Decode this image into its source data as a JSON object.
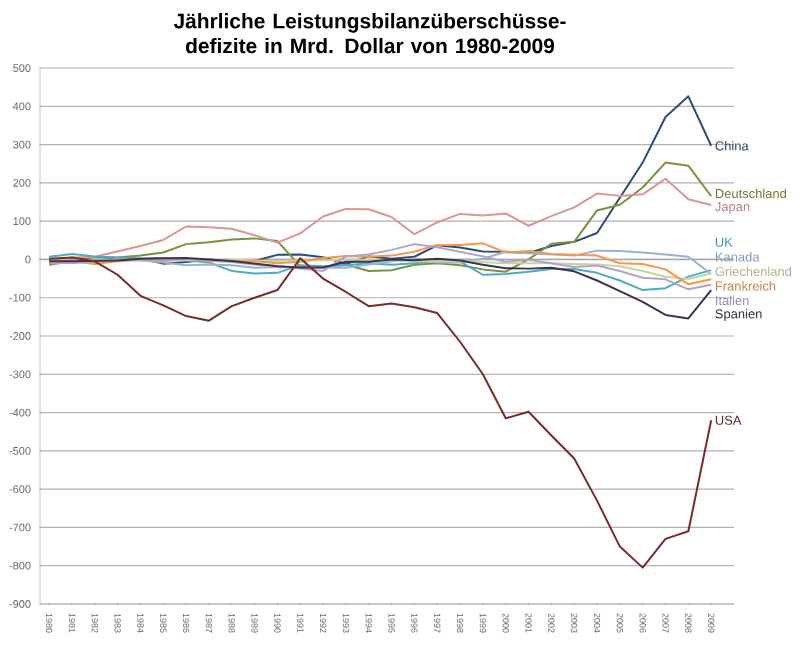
{
  "chart_data": {
    "type": "line",
    "title": "Jährliche Leistungsbilanzüberschüsse- defizite in Mrd. Dollar von 1980-2009",
    "categories": [
      "1980",
      "1981",
      "1982",
      "1983",
      "1984",
      "1985",
      "1986",
      "1987",
      "1988",
      "1989",
      "1990",
      "1991",
      "1992",
      "1993",
      "1994",
      "1995",
      "1996",
      "1997",
      "1998",
      "1999",
      "2000",
      "2001",
      "2002",
      "2003",
      "2004",
      "2005",
      "2006",
      "2007",
      "2008",
      "2009"
    ],
    "ylim": [
      -900,
      500
    ],
    "yticks": [
      -900,
      -800,
      -700,
      -600,
      -500,
      -400,
      -300,
      -200,
      -100,
      0,
      100,
      200,
      300,
      400,
      500
    ],
    "grid": "y",
    "legend": false,
    "marker": "none",
    "line_style": "solid",
    "series": [
      {
        "name": "China",
        "color": "#2c4d75",
        "values": [
          0,
          2,
          5,
          4,
          2,
          -11,
          -7,
          0,
          -4,
          -4,
          12,
          13,
          6,
          -12,
          8,
          2,
          7,
          37,
          31,
          21,
          20,
          17,
          35,
          46,
          69,
          161,
          253,
          372,
          426,
          297
        ]
      },
      {
        "name": "Deutschland",
        "color": "#77933c",
        "values": [
          -14,
          -4,
          5,
          5,
          10,
          18,
          40,
          45,
          52,
          55,
          48,
          -18,
          -20,
          -14,
          -30,
          -28,
          -14,
          -10,
          -15,
          -26,
          -32,
          0,
          41,
          46,
          128,
          143,
          188,
          253,
          245,
          165
        ]
      },
      {
        "name": "Japan",
        "color": "#d99694",
        "values": [
          -10,
          5,
          7,
          21,
          35,
          51,
          86,
          84,
          80,
          63,
          44,
          68,
          112,
          132,
          131,
          111,
          66,
          97,
          119,
          115,
          120,
          88,
          113,
          136,
          172,
          166,
          170,
          211,
          157,
          142
        ]
      },
      {
        "name": "UK",
        "color": "#4bacc6",
        "values": [
          7,
          14,
          8,
          5,
          2,
          3,
          -2,
          -8,
          -30,
          -37,
          -35,
          -15,
          -18,
          -15,
          -10,
          -14,
          -10,
          -3,
          -6,
          -40,
          -38,
          -32,
          -25,
          -25,
          -35,
          -55,
          -80,
          -75,
          -45,
          -28
        ]
      },
      {
        "name": "Kanada",
        "color": "#95b3d7",
        "values": [
          -5,
          -10,
          2,
          -2,
          -2,
          -8,
          -15,
          -13,
          -15,
          -22,
          -20,
          -22,
          -21,
          -22,
          -13,
          -5,
          3,
          -8,
          -8,
          2,
          20,
          16,
          13,
          10,
          23,
          22,
          18,
          13,
          7,
          -38
        ]
      },
      {
        "name": "Griechenland",
        "color": "#c3d69b",
        "values": [
          -2,
          -2,
          -2,
          -2,
          -2,
          -3,
          -2,
          -1,
          -1,
          -3,
          -4,
          -2,
          -2,
          -1,
          0,
          -3,
          -5,
          -5,
          -4,
          -7,
          -10,
          -10,
          -10,
          -12,
          -13,
          -18,
          -30,
          -45,
          -51,
          -36
        ]
      },
      {
        "name": "Frankreich",
        "color": "#f79646",
        "values": [
          -4,
          -5,
          -12,
          -5,
          -1,
          0,
          2,
          -5,
          -5,
          -5,
          -10,
          -6,
          4,
          9,
          7,
          10,
          20,
          38,
          38,
          42,
          18,
          22,
          14,
          12,
          10,
          -10,
          -12,
          -26,
          -65,
          -52
        ]
      },
      {
        "name": "Italien",
        "color": "#b3a2c7",
        "values": [
          -10,
          -9,
          -7,
          1,
          -2,
          -4,
          2,
          -2,
          -7,
          -13,
          -17,
          -24,
          -30,
          8,
          13,
          25,
          40,
          32,
          20,
          8,
          -6,
          -1,
          -10,
          -20,
          -16,
          -30,
          -48,
          -52,
          -78,
          -66
        ]
      },
      {
        "name": "Spanien",
        "color": "#403152",
        "values": [
          -5,
          -5,
          -4,
          -3,
          2,
          3,
          4,
          0,
          -4,
          -11,
          -18,
          -21,
          -21,
          -6,
          -6,
          0,
          -2,
          2,
          -3,
          -14,
          -23,
          -24,
          -22,
          -31,
          -55,
          -83,
          -111,
          -145,
          -154,
          -80
        ]
      },
      {
        "name": "USA",
        "color": "#772c2a",
        "values": [
          2,
          5,
          -5,
          -40,
          -95,
          -120,
          -148,
          -160,
          -122,
          -100,
          -80,
          3,
          -50,
          -85,
          -122,
          -115,
          -125,
          -140,
          -215,
          -300,
          -415,
          -398,
          -460,
          -520,
          -630,
          -750,
          -805,
          -730,
          -710,
          -420
        ]
      }
    ]
  }
}
